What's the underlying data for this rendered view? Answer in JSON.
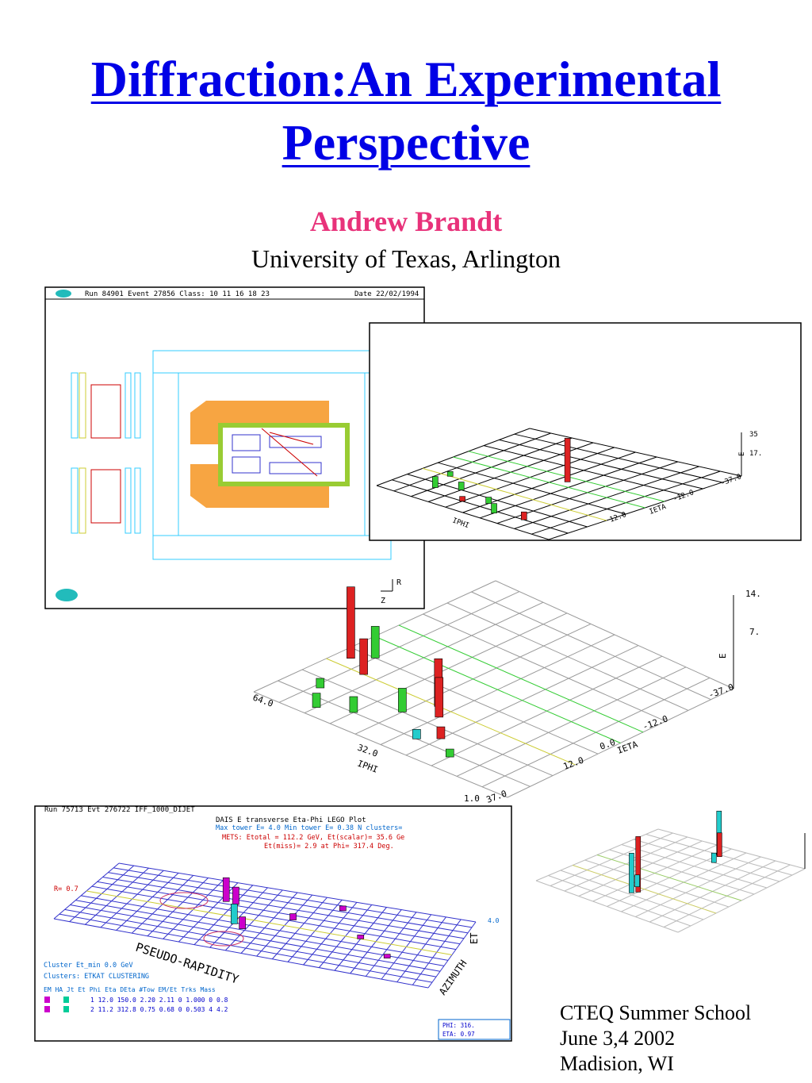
{
  "title": [
    "Diffraction:An Experimental",
    "Perspective"
  ],
  "author": "Andrew Brandt",
  "affiliation": "University of Texas, Arlington",
  "event_display": {
    "header": "Run 84901   Event 27856   Class: 10 11 16 18 23",
    "date": "Date 22/02/1994",
    "axis_r": "R",
    "axis_z": "Z"
  },
  "lego_small": {
    "labels": [
      "IPHI",
      "IETA",
      "E",
      "-37.0",
      "-12.0",
      "12.0",
      "35",
      "17."
    ]
  },
  "lego_large": {
    "labels": [
      "IPHI",
      "IETA",
      "E",
      "-37.0",
      "-12.0",
      "0.0",
      "12.0",
      "32.0",
      "64.0",
      "1.0",
      "37.0",
      "14.",
      "7."
    ]
  },
  "dais_plot": {
    "header": "Run 75713 Evt 276722   IFF_1000_DIJET",
    "title": "DAIS E transverse Eta-Phi LEGO Plot",
    "line1": "Max tower E=   4.0 Min tower E=  0.38  N clusters=",
    "line2": "METS: Etotal = 112.2 GeV,   Et(scalar)=  35.6 Ge",
    "line3": "Et(miss)=    2.9 at Phi= 317.4 Deg.",
    "r_label": "R=  0.7",
    "pseudo": "PSEUDO-RAPIDITY",
    "azimuth": "AZIMUTH",
    "et": "ET",
    "et_value": "4.0",
    "cluster_min": "Cluster Et_min    0.0 GeV",
    "clusters": "Clusters: ETKAT CLUSTERING",
    "table_header": "EM HA Jt    Et    Phi    Eta  DEta #Tow EM/Et Trks  Mass",
    "row1": "1  12.0 150.0  2.20  2.11   0 1.000   0   0.8",
    "row2": "2  11.2 312.8  0.75  0.68   0 0.503   4   4.2",
    "phi": "PHI:      316.",
    "eta": "ETA:      0.97"
  },
  "footer": [
    "CTEQ Summer School",
    "June 3,4 2002",
    "Madision, WI"
  ]
}
